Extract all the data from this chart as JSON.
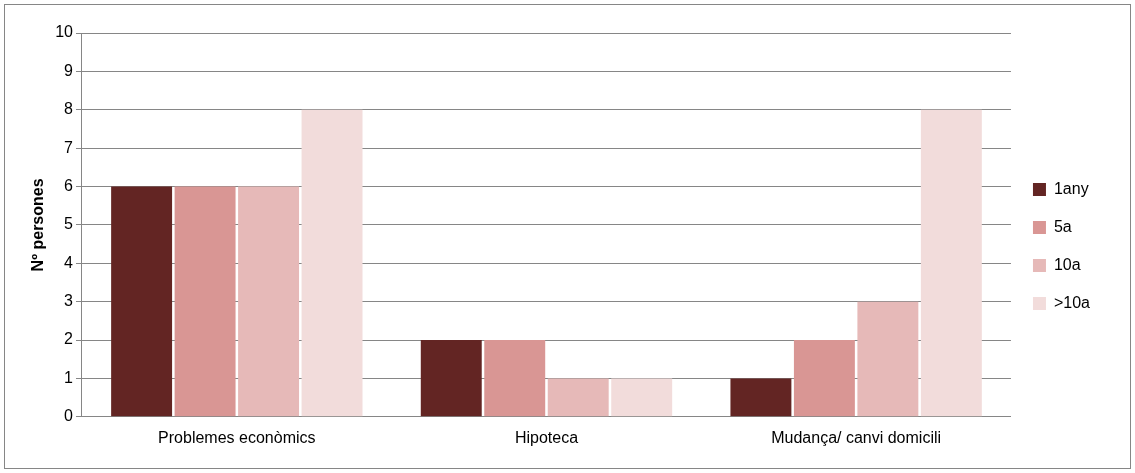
{
  "chart_data": {
    "type": "bar",
    "ylabel": "Nº persones",
    "categories": [
      "Problemes econòmics",
      "Hipoteca",
      "Mudança/ canvi domicili"
    ],
    "series": [
      {
        "name": "1any",
        "color": "#632523",
        "values": [
          6,
          2,
          1
        ]
      },
      {
        "name": "5a",
        "color": "#d99694",
        "values": [
          6,
          2,
          2
        ]
      },
      {
        "name": "10a",
        "color": "#e6b9b8",
        "values": [
          6,
          1,
          3
        ]
      },
      {
        "name": ">10a",
        "color": "#f2dcdb",
        "values": [
          8,
          1,
          8
        ]
      }
    ],
    "ylim": [
      0,
      10
    ],
    "yticks": [
      0,
      1,
      2,
      3,
      4,
      5,
      6,
      7,
      8,
      9,
      10
    ],
    "grid": "y",
    "legend": "right"
  }
}
